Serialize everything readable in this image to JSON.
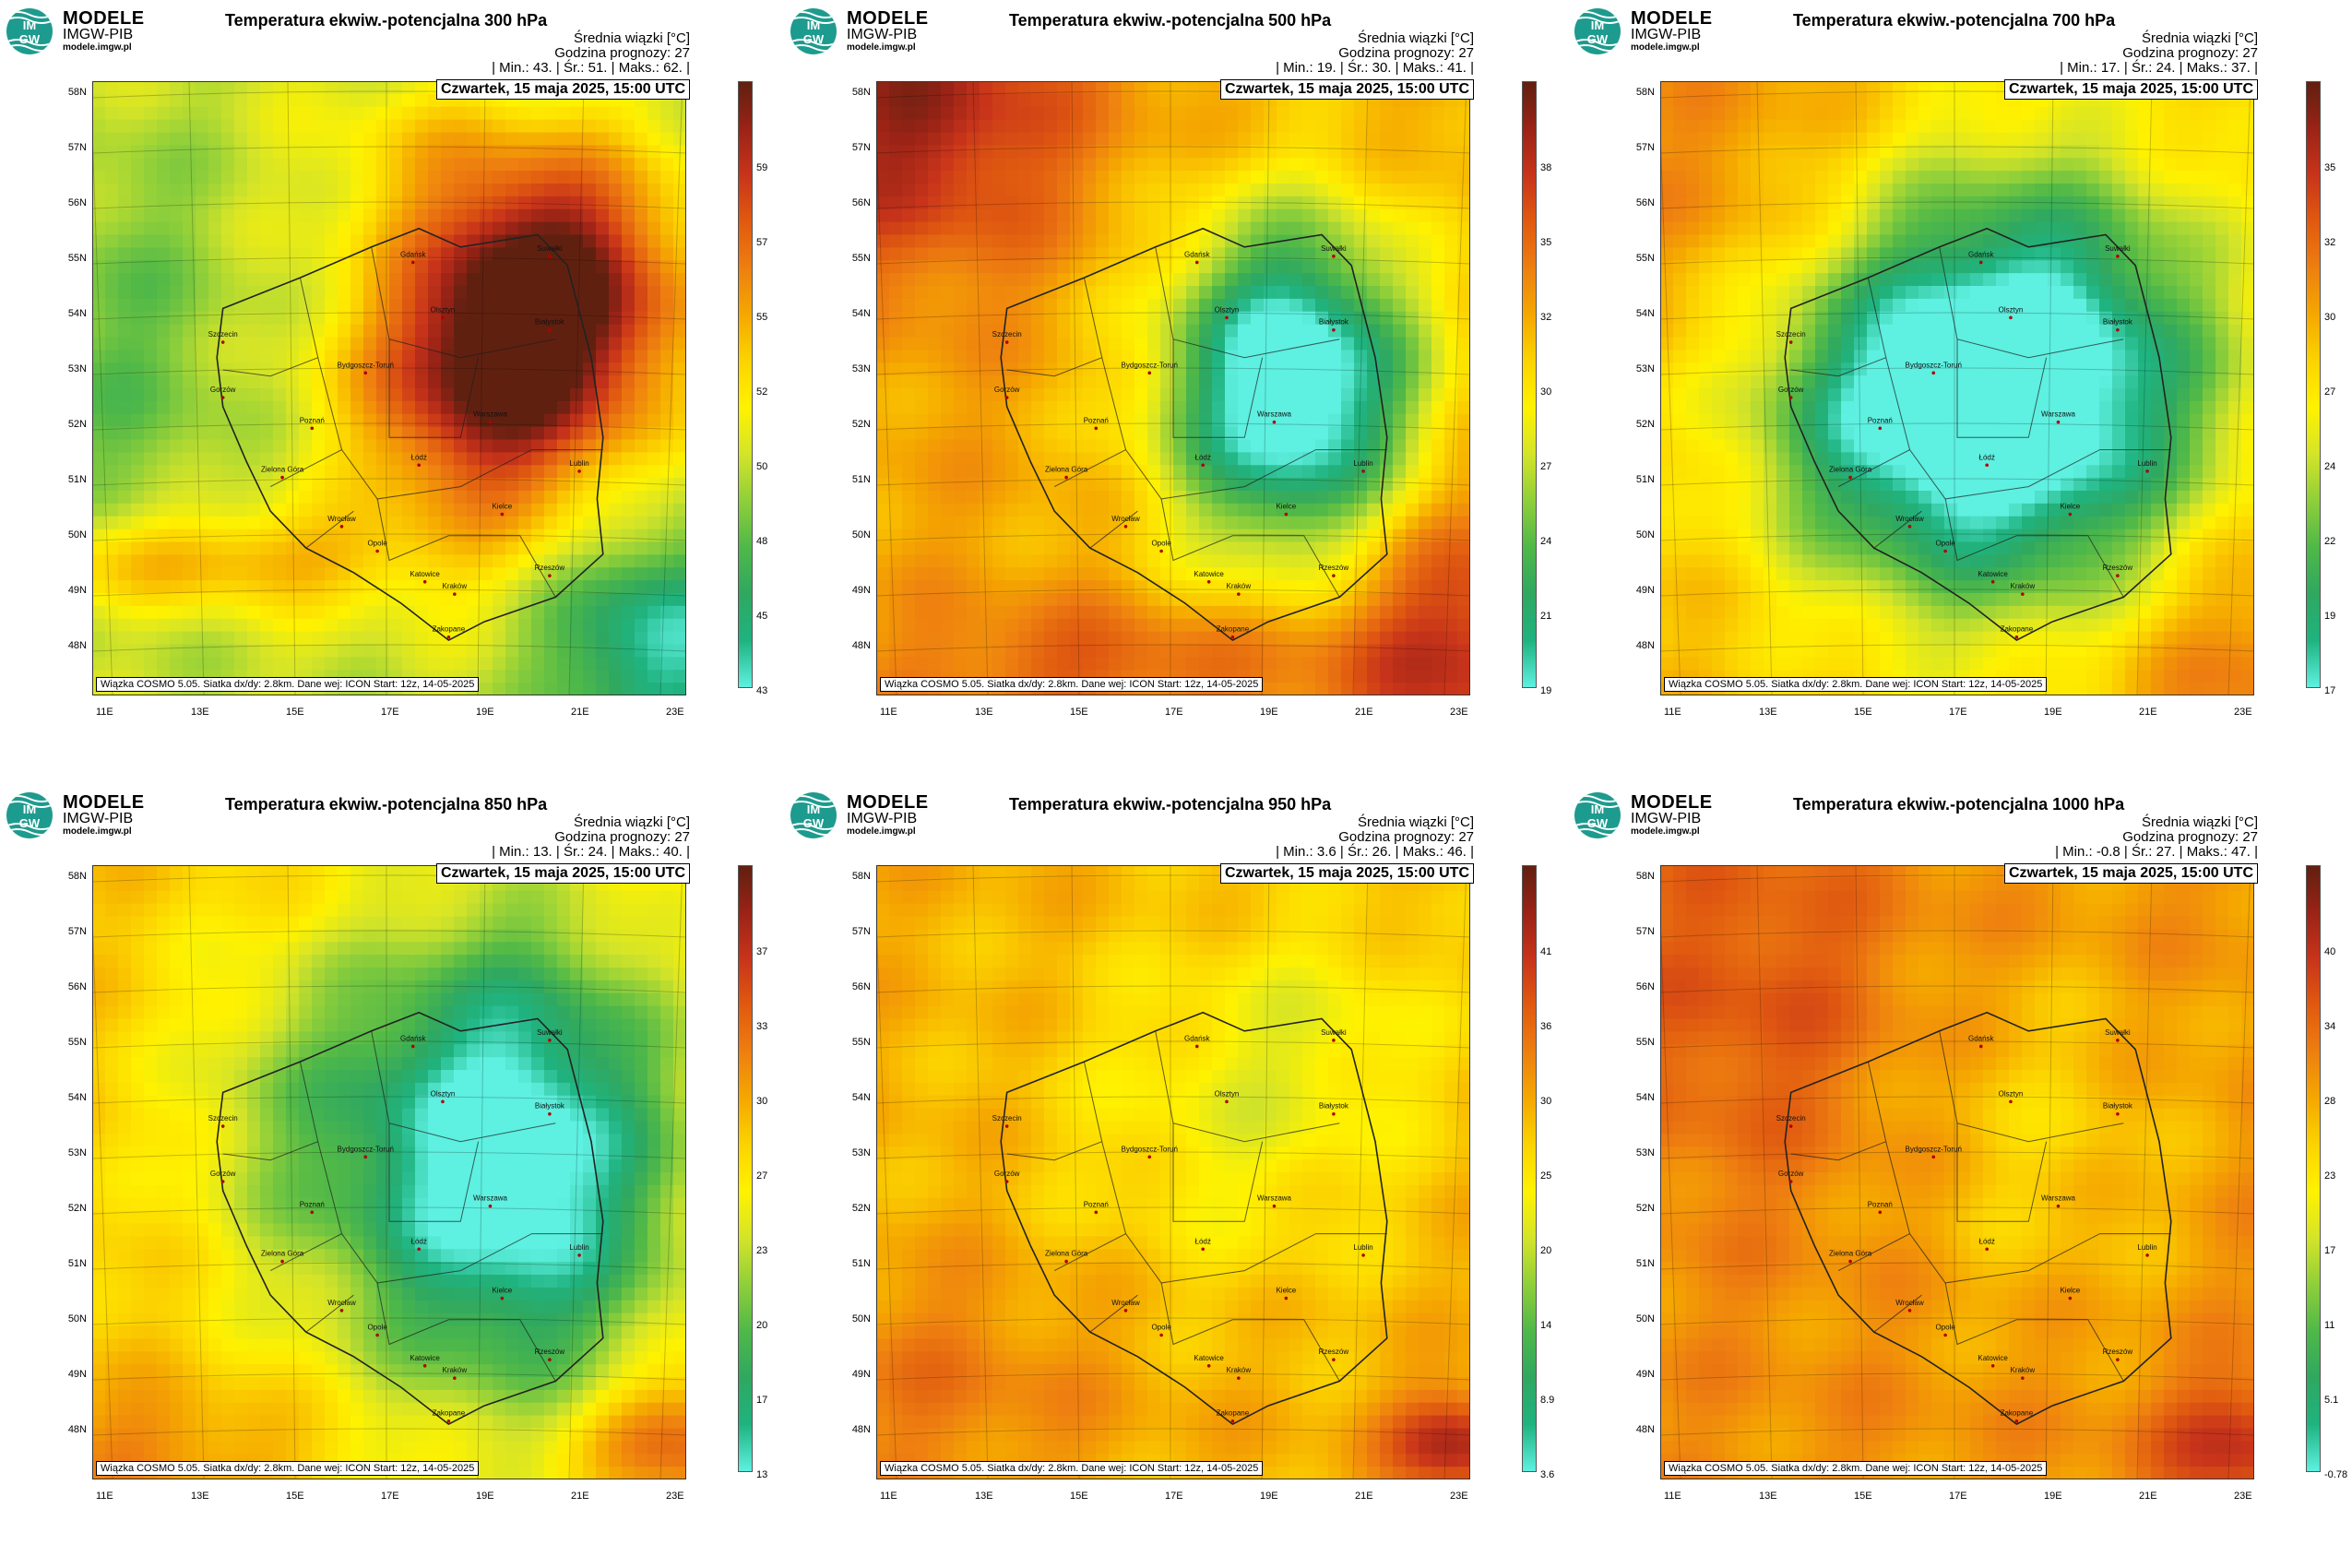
{
  "logo": {
    "badge_top": "IM",
    "badge_bottom": "GW",
    "title": "MODELE",
    "subtitle": "IMGW-PIB",
    "url": "modele.imgw.pl"
  },
  "common": {
    "meta_line1": "Średnia wiązki [°C]",
    "meta_line2": "Godzina prognozy: 27",
    "date": "Czwartek, 15 maja 2025, 15:00 UTC",
    "footer": "Wiązka COSMO 5.05. Siatka dx/dy: 2.8km. Dane wej: ICON Start: 12z, 14-05-2025"
  },
  "lat_labels": [
    "58N",
    "57N",
    "56N",
    "55N",
    "54N",
    "53N",
    "52N",
    "51N",
    "50N",
    "49N",
    "48N"
  ],
  "lon_labels": [
    "11E",
    "13E",
    "15E",
    "17E",
    "19E",
    "21E",
    "23E"
  ],
  "cities": [
    "Gdańsk",
    "Olsztyn",
    "Szczecin",
    "Białystok",
    "Bydgoszcz-Toruń",
    "Gorzów",
    "Poznań",
    "Warszawa",
    "Zielona Góra",
    "Łódź",
    "Lublin",
    "Wrocław",
    "Kielce",
    "Opole",
    "Katowice",
    "Kraków",
    "Rzeszów",
    "Zakopane",
    "Suwałki"
  ],
  "colors": {
    "scale": [
      "#5ef0e0",
      "#1fb380",
      "#2fa860",
      "#4fb848",
      "#8fcf3a",
      "#d4e428",
      "#fff200",
      "#fcd400",
      "#f5a800",
      "#ee7f10",
      "#e05a10",
      "#c8341a",
      "#9a2316",
      "#602010"
    ]
  },
  "panels": [
    {
      "title": "Temperatura ekwiw.-potencjalna 300 hPa",
      "stats": {
        "min": "43.",
        "avg": "51.",
        "max": "62."
      },
      "colorbar": [
        "59",
        "57",
        "55",
        "52",
        "50",
        "48",
        "45",
        "43"
      ],
      "field": {
        "base": 0.38,
        "blobs": [
          [
            0.77,
            0.33,
            0.22,
            0.22,
            0.62
          ],
          [
            0.66,
            0.52,
            0.22,
            0.22,
            0.45
          ],
          [
            0.55,
            0.12,
            0.18,
            0.12,
            0.1
          ],
          [
            0.95,
            0.92,
            0.18,
            0.18,
            -0.35
          ],
          [
            0.05,
            0.45,
            0.2,
            0.35,
            -0.12
          ],
          [
            0.2,
            0.78,
            0.35,
            0.08,
            0.25
          ]
        ]
      }
    },
    {
      "title": "Temperatura ekwiw.-potencjalna 500 hPa",
      "stats": {
        "min": "19.",
        "avg": "30.",
        "max": "41."
      },
      "colorbar": [
        "38",
        "35",
        "32",
        "30",
        "27",
        "24",
        "21",
        "19"
      ],
      "field": {
        "base": 0.62,
        "blobs": [
          [
            0.7,
            0.5,
            0.22,
            0.28,
            -0.75
          ],
          [
            0.05,
            0.05,
            0.28,
            0.25,
            0.3
          ],
          [
            0.97,
            0.92,
            0.22,
            0.25,
            0.25
          ],
          [
            0.4,
            0.95,
            0.35,
            0.1,
            0.15
          ]
        ]
      }
    },
    {
      "title": "Temperatura ekwiw.-potencjalna 700 hPa",
      "stats": {
        "min": "17.",
        "avg": "24.",
        "max": "37."
      },
      "colorbar": [
        "35",
        "32",
        "30",
        "27",
        "24",
        "22",
        "19",
        "17"
      ],
      "field": {
        "base": 0.58,
        "blobs": [
          [
            0.62,
            0.5,
            0.33,
            0.36,
            -0.7
          ],
          [
            0.35,
            0.55,
            0.25,
            0.25,
            -0.25
          ],
          [
            0.1,
            0.15,
            0.25,
            0.25,
            0.1
          ],
          [
            0.97,
            0.95,
            0.25,
            0.25,
            0.15
          ]
        ]
      }
    },
    {
      "title": "Temperatura ekwiw.-potencjalna 850 hPa",
      "stats": {
        "min": "13.",
        "avg": "24.",
        "max": "40."
      },
      "colorbar": [
        "37",
        "33",
        "30",
        "27",
        "23",
        "20",
        "17",
        "13"
      ],
      "field": {
        "base": 0.56,
        "blobs": [
          [
            0.7,
            0.48,
            0.3,
            0.4,
            -0.65
          ],
          [
            0.3,
            0.4,
            0.2,
            0.3,
            -0.15
          ],
          [
            0.1,
            0.95,
            0.25,
            0.1,
            0.12
          ],
          [
            0.98,
            0.93,
            0.15,
            0.1,
            0.25
          ]
        ]
      }
    },
    {
      "title": "Temperatura ekwiw.-potencjalna 950 hPa",
      "stats": {
        "min": "3.6",
        "avg": "26.",
        "max": "46."
      },
      "colorbar": [
        "41",
        "36",
        "30",
        "25",
        "20",
        "14",
        "8.9",
        "3.6"
      ],
      "field": {
        "base": 0.6,
        "blobs": [
          [
            0.6,
            0.4,
            0.3,
            0.3,
            -0.15
          ],
          [
            0.1,
            0.85,
            0.3,
            0.2,
            0.1
          ],
          [
            0.98,
            0.94,
            0.12,
            0.08,
            0.3
          ],
          [
            0.8,
            0.25,
            0.2,
            0.2,
            -0.08
          ]
        ]
      }
    },
    {
      "title": "Temperatura ekwiw.-potencjalna 1000 hPa",
      "stats": {
        "min": "-0.8",
        "avg": "27.",
        "max": "47."
      },
      "colorbar": [
        "40",
        "34",
        "28",
        "23",
        "17",
        "11",
        "5.1",
        "-0.78"
      ],
      "field": {
        "base": 0.66,
        "blobs": [
          [
            0.15,
            0.2,
            0.25,
            0.3,
            0.12
          ],
          [
            0.65,
            0.45,
            0.25,
            0.3,
            -0.12
          ],
          [
            0.98,
            0.94,
            0.15,
            0.1,
            0.2
          ]
        ]
      }
    }
  ]
}
